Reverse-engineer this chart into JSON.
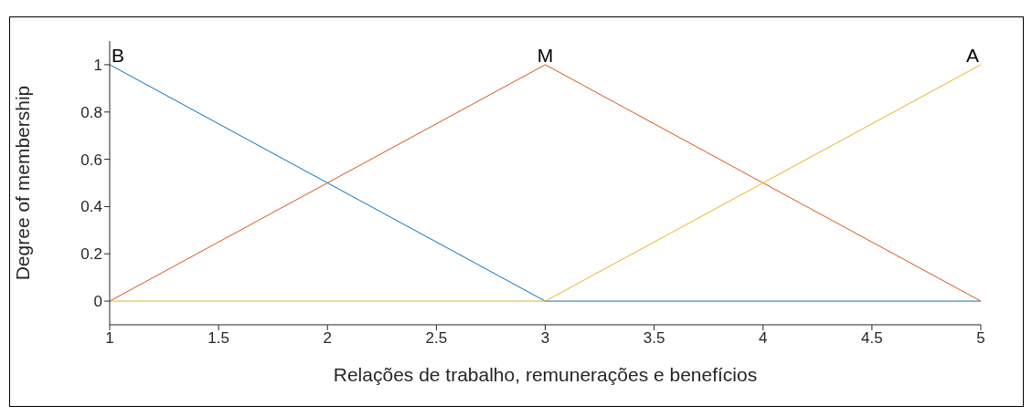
{
  "chart_data": {
    "type": "line",
    "xlabel": "Relações de trabalho, remunerações e benefícios",
    "ylabel": "Degree of membership",
    "x": [
      1,
      3,
      5
    ],
    "series": [
      {
        "name": "B",
        "color": "#0072bd",
        "values": [
          1,
          0,
          0
        ]
      },
      {
        "name": "M",
        "color": "#d95319",
        "values": [
          0,
          1,
          0
        ]
      },
      {
        "name": "A",
        "color": "#edb120",
        "values": [
          0,
          0,
          1
        ]
      }
    ],
    "xlim": [
      1,
      5
    ],
    "xticks": [
      1,
      1.5,
      2,
      2.5,
      3,
      3.5,
      4,
      4.5,
      5
    ],
    "ylim": [
      -0.1,
      1.1
    ],
    "yticks": [
      0,
      0.2,
      0.4,
      0.6,
      0.8,
      1
    ],
    "legend": false,
    "marker": "none",
    "line_style": "solid",
    "grid": false
  }
}
